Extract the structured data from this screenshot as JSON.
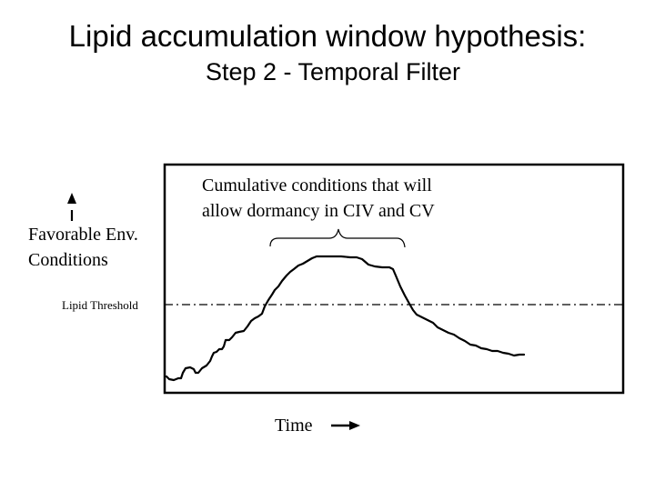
{
  "title": "Lipid accumulation window hypothesis:",
  "subtitle": "Step 2 - Temporal Filter",
  "y_axis_label": {
    "line1": "Favorable Env.",
    "line2": "Conditions"
  },
  "threshold_label": "Lipid Threshold",
  "annotation": {
    "line1": "Cumulative conditions that will",
    "line2": "allow dormancy in CIV and CV"
  },
  "x_axis_label": "Time",
  "icons": {
    "y_arrow": "up-arrow-icon",
    "x_arrow": "right-arrow-icon"
  },
  "colors": {
    "line": "#000000",
    "background": "#ffffff"
  }
}
